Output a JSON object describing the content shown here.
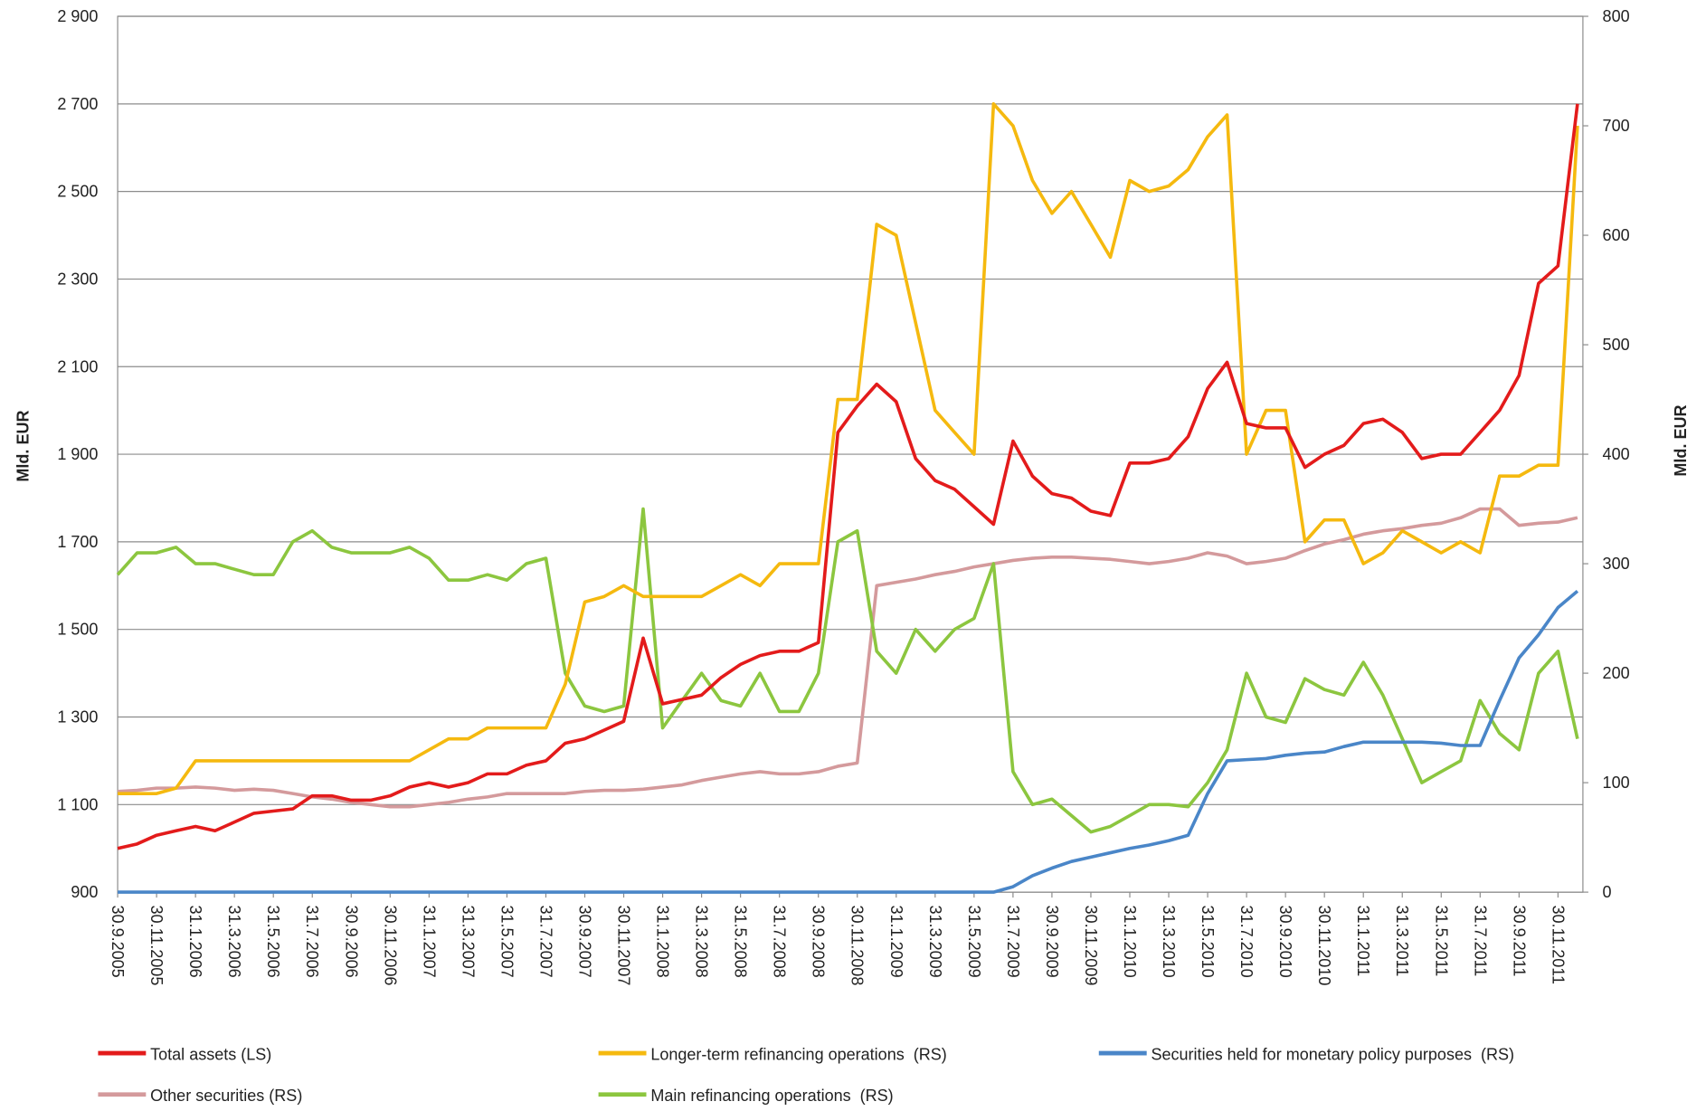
{
  "chart_data": {
    "type": "line",
    "y_label": "Mld. EUR",
    "y2_label": "Mld. EUR",
    "categories": [
      "30.9.2005",
      null,
      "30.11.2005",
      null,
      "31.1.2006",
      null,
      "31.3.2006",
      null,
      "31.5.2006",
      null,
      "31.7.2006",
      null,
      "30.9.2006",
      null,
      "30.11.2006",
      null,
      "31.1.2007",
      null,
      "31.3.2007",
      null,
      "31.5.2007",
      null,
      "31.7.2007",
      null,
      "30.9.2007",
      null,
      "30.11.2007",
      null,
      "31.1.2008",
      null,
      "31.3.2008",
      null,
      "31.5.2008",
      null,
      "31.7.2008",
      null,
      "30.9.2008",
      null,
      "30.11.2008",
      null,
      "31.1.2009",
      null,
      "31.3.2009",
      null,
      "31.5.2009",
      null,
      "31.7.2009",
      null,
      "30.9.2009",
      null,
      "30.11.2009",
      null,
      "31.1.2010",
      null,
      "31.3.2010",
      null,
      "31.5.2010",
      null,
      "31.7.2010",
      null,
      "30.9.2010",
      null,
      "30.11.2010",
      null,
      "31.1.2011",
      null,
      "31.3.2011",
      null,
      "31.5.2011",
      null,
      "31.7.2011",
      null,
      "30.9.2011",
      null,
      "30.11.2011",
      null
    ],
    "ylim": [
      900,
      2900
    ],
    "yticks": [
      {
        "value": 900,
        "label": "900"
      },
      {
        "value": 1100,
        "label": "1 100"
      },
      {
        "value": 1300,
        "label": "1 300"
      },
      {
        "value": 1500,
        "label": "1 500"
      },
      {
        "value": 1700,
        "label": "1 700"
      },
      {
        "value": 1900,
        "label": "1 900"
      },
      {
        "value": 2100,
        "label": "2 100"
      },
      {
        "value": 2300,
        "label": "2 300"
      },
      {
        "value": 2500,
        "label": "2 500"
      },
      {
        "value": 2700,
        "label": "2 700"
      },
      {
        "value": 2900,
        "label": "2 900"
      }
    ],
    "y2lim": [
      0,
      800
    ],
    "y2ticks": [
      0,
      100,
      200,
      300,
      400,
      500,
      600,
      700,
      800
    ],
    "grid": true,
    "legend": "bottom",
    "series": [
      {
        "name": "Total assets (LS)",
        "color": "#e31b1b",
        "values": [
          1000,
          1010,
          1030,
          1040,
          1050,
          1040,
          1060,
          1080,
          1085,
          1090,
          1120,
          1120,
          1110,
          1110,
          1120,
          1140,
          1150,
          1140,
          1150,
          1170,
          1170,
          1190,
          1200,
          1240,
          1250,
          1270,
          1290,
          1480,
          1330,
          1340,
          1350,
          1390,
          1420,
          1440,
          1450,
          1450,
          1470,
          1950,
          2010,
          2060,
          2020,
          1890,
          1840,
          1820,
          1780,
          1740,
          1930,
          1850,
          1810,
          1800,
          1770,
          1760,
          1880,
          1880,
          1890,
          1940,
          2050,
          2110,
          1970,
          1960,
          1960,
          1870,
          1900,
          1920,
          1970,
          1980,
          1950,
          1890,
          1900,
          1900,
          1950,
          2000,
          2080,
          2290,
          2330,
          2700
        ]
      },
      {
        "name": "Longer-term refinancing operations  (RS)",
        "color": "#f5b90f",
        "axis": "y2",
        "values": [
          90,
          90,
          90,
          95,
          120,
          120,
          120,
          120,
          120,
          120,
          120,
          120,
          120,
          120,
          120,
          120,
          130,
          140,
          140,
          150,
          150,
          150,
          150,
          190,
          265,
          270,
          280,
          270,
          270,
          270,
          270,
          280,
          290,
          280,
          300,
          300,
          300,
          450,
          450,
          610,
          600,
          520,
          440,
          420,
          400,
          720,
          700,
          650,
          620,
          640,
          610,
          580,
          650,
          640,
          645,
          660,
          690,
          710,
          400,
          440,
          440,
          320,
          340,
          340,
          300,
          310,
          330,
          320,
          310,
          320,
          310,
          380,
          380,
          390,
          390,
          700
        ]
      },
      {
        "name": "Securities held for monetary policy purposes  (RS)",
        "color": "#4a86c8",
        "axis": "y2",
        "values": [
          0,
          0,
          0,
          0,
          0,
          0,
          0,
          0,
          0,
          0,
          0,
          0,
          0,
          0,
          0,
          0,
          0,
          0,
          0,
          0,
          0,
          0,
          0,
          0,
          0,
          0,
          0,
          0,
          0,
          0,
          0,
          0,
          0,
          0,
          0,
          0,
          0,
          0,
          0,
          0,
          0,
          0,
          0,
          0,
          0,
          0,
          5,
          15,
          22,
          28,
          32,
          36,
          40,
          43,
          47,
          52,
          90,
          120,
          121,
          122,
          125,
          127,
          128,
          133,
          137,
          137,
          137,
          137,
          136,
          134,
          134,
          175,
          214,
          235,
          260,
          275
        ]
      },
      {
        "name": "Other securities (RS)",
        "color": "#d49a9c",
        "axis": "y2",
        "values": [
          92,
          93,
          95,
          95,
          96,
          95,
          93,
          94,
          93,
          90,
          87,
          85,
          82,
          80,
          78,
          78,
          80,
          82,
          85,
          87,
          90,
          90,
          90,
          90,
          92,
          93,
          93,
          94,
          96,
          98,
          102,
          105,
          108,
          110,
          108,
          108,
          110,
          115,
          118,
          280,
          283,
          286,
          290,
          293,
          297,
          300,
          303,
          305,
          306,
          306,
          305,
          304,
          302,
          300,
          302,
          305,
          310,
          307,
          300,
          302,
          305,
          312,
          318,
          322,
          327,
          330,
          332,
          335,
          337,
          342,
          350,
          350,
          335,
          337,
          338,
          342
        ]
      },
      {
        "name": "Main refinancing operations  (RS)",
        "color": "#8cc63f",
        "axis": "y2",
        "values": [
          290,
          310,
          310,
          315,
          300,
          300,
          295,
          290,
          290,
          320,
          330,
          315,
          310,
          310,
          310,
          315,
          305,
          285,
          285,
          290,
          285,
          300,
          305,
          200,
          170,
          165,
          170,
          350,
          150,
          175,
          200,
          175,
          170,
          200,
          165,
          165,
          200,
          320,
          330,
          220,
          200,
          240,
          220,
          240,
          250,
          300,
          110,
          80,
          85,
          70,
          55,
          60,
          70,
          80,
          80,
          78,
          100,
          130,
          200,
          160,
          155,
          195,
          185,
          180,
          210,
          180,
          140,
          100,
          110,
          120,
          175,
          145,
          130,
          200,
          220,
          140
        ]
      }
    ]
  }
}
